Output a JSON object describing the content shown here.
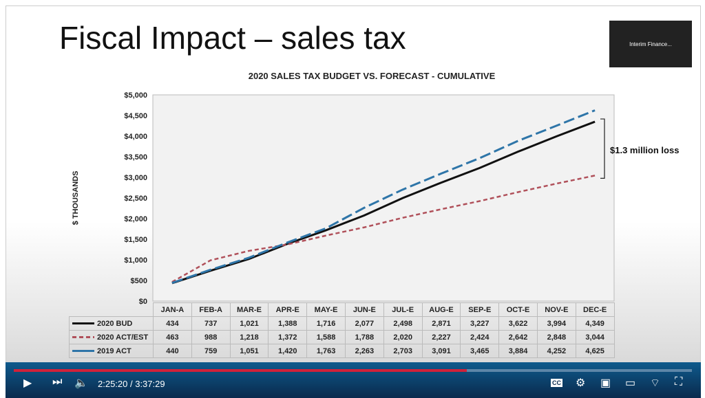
{
  "slide": {
    "title": "Fiscal Impact – sales tax",
    "thumbnail_label": "Interim Finance..."
  },
  "chart_data": {
    "type": "line",
    "title": "2020 SALES TAX BUDGET VS. FORECAST - CUMULATIVE",
    "ylabel": "$ THOUSANDS",
    "ylim": [
      0,
      5000
    ],
    "yticks": [
      "$0",
      "$500",
      "$1,000",
      "$1,500",
      "$2,000",
      "$2,500",
      "$3,000",
      "$3,500",
      "$4,000",
      "$4,500",
      "$5,000"
    ],
    "categories": [
      "JAN-A",
      "FEB-A",
      "MAR-E",
      "APR-E",
      "MAY-E",
      "JUN-E",
      "JUL-E",
      "AUG-E",
      "SEP-E",
      "OCT-E",
      "NOV-E",
      "DEC-E"
    ],
    "series": [
      {
        "name": "2020 BUD",
        "color": "#111111",
        "style": "solid",
        "values": [
          434,
          737,
          1021,
          1388,
          1716,
          2077,
          2498,
          2871,
          3227,
          3622,
          3994,
          4349
        ],
        "labels": [
          "434",
          "737",
          "1,021",
          "1,388",
          "1,716",
          "2,077",
          "2,498",
          "2,871",
          "3,227",
          "3,622",
          "3,994",
          "4,349"
        ]
      },
      {
        "name": "2020 ACT/EST",
        "color": "#b0505a",
        "style": "dashed",
        "values": [
          463,
          988,
          1218,
          1372,
          1588,
          1788,
          2020,
          2227,
          2424,
          2642,
          2848,
          3044
        ],
        "labels": [
          "463",
          "988",
          "1,218",
          "1,372",
          "1,588",
          "1,788",
          "2,020",
          "2,227",
          "2,424",
          "2,642",
          "2,848",
          "3,044"
        ]
      },
      {
        "name": "2019 ACT",
        "color": "#2e75a8",
        "style": "longdash",
        "values": [
          440,
          759,
          1051,
          1420,
          1763,
          2263,
          2703,
          3091,
          3465,
          3884,
          4252,
          4625
        ],
        "labels": [
          "440",
          "759",
          "1,051",
          "1,420",
          "1,763",
          "2,263",
          "2,703",
          "3,091",
          "3,465",
          "3,884",
          "4,252",
          "4,625"
        ]
      }
    ],
    "annotation": "$1.3 million loss",
    "grid": false,
    "legend": "data-table"
  },
  "player": {
    "time": "2:25:20 / 3:37:29",
    "progress": 0.668,
    "cc": "CC"
  }
}
